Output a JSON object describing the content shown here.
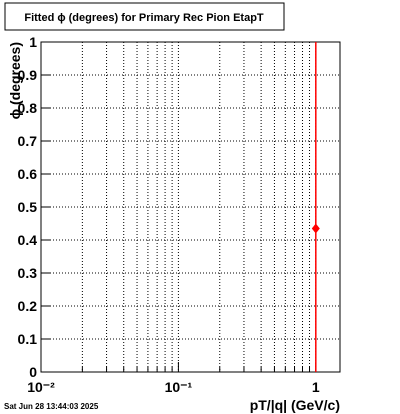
{
  "chart_data": {
    "type": "scatter",
    "title": "Fitted ϕ (degrees) for Primary Rec Pion EtapT",
    "x_label": "pT/|q| (GeV/c)",
    "y_label": "ϕ (degrees)",
    "footer": "Sat Jun 28 13:44:03 2025",
    "x": [
      1
    ],
    "values": [
      0.435
    ],
    "errors": [
      0.6
    ],
    "color": "#ff0000",
    "xscale": "log",
    "xlim": [
      0.01,
      1.5
    ],
    "ylim": [
      0,
      1
    ],
    "xticks": [
      {
        "value": 0.01,
        "label": "10⁻²"
      },
      {
        "value": 0.1,
        "label": "10⁻¹"
      },
      1
    ],
    "xminorticks": [
      0.02,
      0.03,
      0.04,
      0.05,
      0.06,
      0.07,
      0.08,
      0.09,
      0.2,
      0.3,
      0.4,
      0.5,
      0.6,
      0.7,
      0.8,
      0.9
    ],
    "yticks": [
      0,
      0.1,
      0.2,
      0.3,
      0.4,
      0.5,
      0.6,
      0.7,
      0.8,
      0.9,
      1
    ],
    "grid": true
  }
}
